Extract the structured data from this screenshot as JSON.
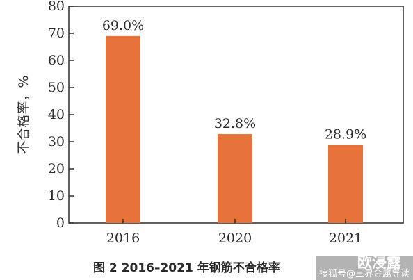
{
  "chart_data": {
    "type": "bar",
    "categories": [
      "2016",
      "2020",
      "2021"
    ],
    "values": [
      69.0,
      32.8,
      28.9
    ],
    "data_labels": [
      "69.0%",
      "32.8%",
      "28.9%"
    ],
    "title": "",
    "xlabel": "",
    "ylabel": "不合格率，%",
    "ylim": [
      0,
      80
    ],
    "yticks": [
      0,
      10,
      20,
      30,
      40,
      50,
      60,
      70,
      80
    ],
    "grid": false,
    "bar_color": "#e8733a"
  },
  "caption": "图 2   2016–2021 年钢筋不合格率",
  "watermark": {
    "small": "搜狐号@三界金属导读",
    "big": "欧浸露"
  }
}
